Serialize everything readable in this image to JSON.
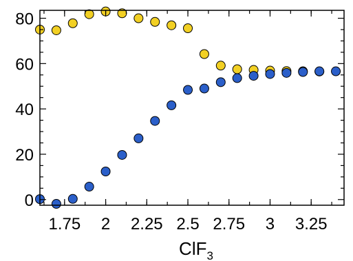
{
  "chart_data": {
    "type": "scatter",
    "xlabel": "ClF",
    "xlabel_subscript": "3",
    "ylabel": "",
    "xlim": [
      1.6,
      3.45
    ],
    "ylim": [
      -2.5,
      83.5
    ],
    "x_ticks": [
      1.75,
      2,
      2.25,
      2.5,
      2.75,
      3,
      3.25
    ],
    "x_tick_labels": [
      "1.75",
      "2",
      "2.25",
      "2.5",
      "2.75",
      "3",
      "3.25"
    ],
    "y_ticks": [
      0,
      20,
      40,
      60,
      80
    ],
    "y_tick_labels": [
      "0",
      "20",
      "40",
      "60",
      "80"
    ],
    "grid": false,
    "series": [
      {
        "color": "#f2d024",
        "points": [
          [
            1.6,
            75.0
          ],
          [
            1.7,
            74.7
          ],
          [
            1.8,
            77.8
          ],
          [
            1.9,
            81.8
          ],
          [
            2.0,
            83.0
          ],
          [
            2.1,
            82.2
          ],
          [
            2.2,
            80.0
          ],
          [
            2.3,
            78.4
          ],
          [
            2.4,
            76.9
          ],
          [
            2.5,
            75.6
          ],
          [
            2.6,
            64.2
          ],
          [
            2.7,
            59.1
          ],
          [
            2.8,
            57.5
          ],
          [
            2.9,
            57.2
          ],
          [
            3.0,
            56.9
          ],
          [
            3.1,
            56.7
          ],
          [
            3.2,
            56.6
          ],
          [
            3.3,
            56.5
          ]
        ]
      },
      {
        "color": "#2b5fc9",
        "points": [
          [
            1.6,
            0.2
          ],
          [
            1.7,
            -1.9
          ],
          [
            1.8,
            0.3
          ],
          [
            1.9,
            5.7
          ],
          [
            2.0,
            12.4
          ],
          [
            2.1,
            19.7
          ],
          [
            2.2,
            27.0
          ],
          [
            2.3,
            34.7
          ],
          [
            2.4,
            41.6
          ],
          [
            2.5,
            48.4
          ],
          [
            2.6,
            49.0
          ],
          [
            2.7,
            51.8
          ],
          [
            2.8,
            53.6
          ],
          [
            2.9,
            54.6
          ],
          [
            3.0,
            55.4
          ],
          [
            3.1,
            55.9
          ],
          [
            3.2,
            56.3
          ],
          [
            3.3,
            56.6
          ],
          [
            3.4,
            56.6
          ]
        ]
      }
    ]
  }
}
